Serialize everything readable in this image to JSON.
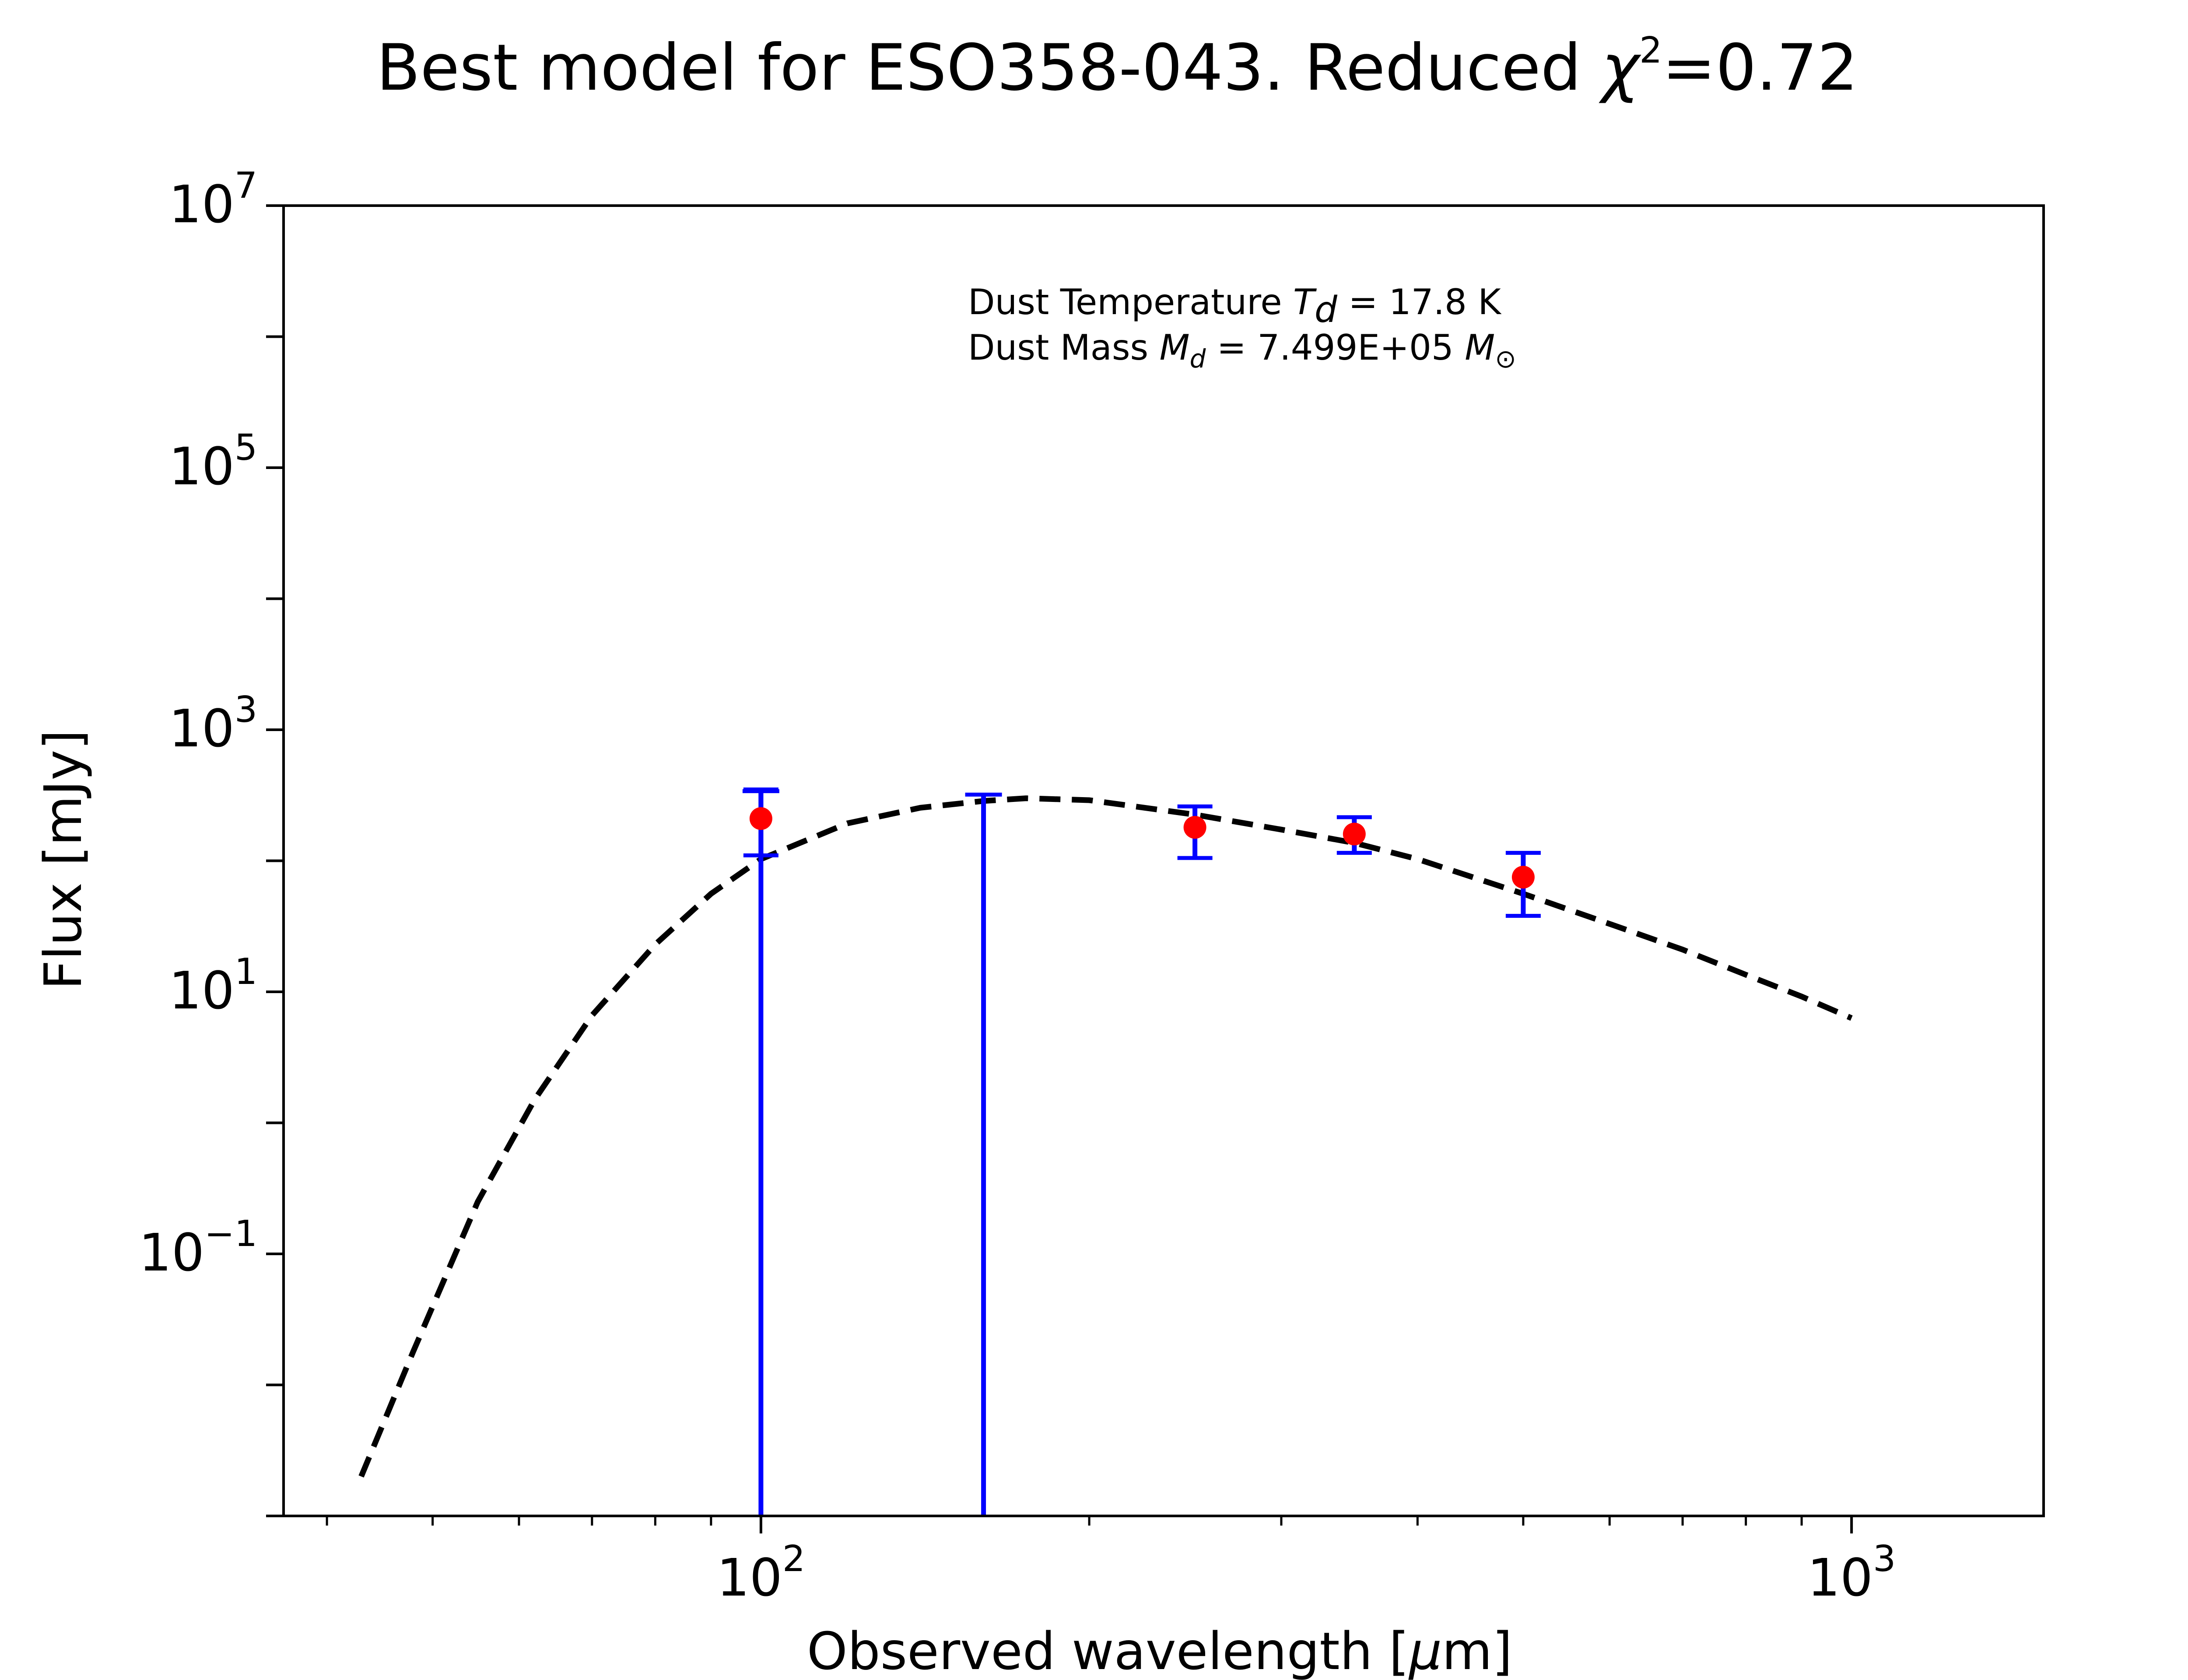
{
  "title_text": "Best model for ESO358-043. Reduced ",
  "title_chi": "χ",
  "title_chi_exp": "2",
  "title_value": "=0.72",
  "annotation": {
    "line1_prefix": "Dust Temperature ",
    "line1_sym": "T",
    "line1_sub": "d",
    "line1_suffix": " = 17.8 K",
    "line2_prefix": "Dust Mass ",
    "line2_sym": "M",
    "line2_sub": "d",
    "line2_mid": " = 7.499E+05 ",
    "line2_unit": "M",
    "line2_unit_sub": "⊙"
  },
  "chart_data": {
    "type": "scatter",
    "title": "Best model for ESO358-043. Reduced χ²=0.72",
    "xlabel_text": "Observed wavelength [",
    "xlabel_unit": "μ",
    "xlabel_tail": "m]",
    "ylabel": "Flux [mJy]",
    "xscale": "log",
    "yscale": "log",
    "xlim": [
      36.5,
      1500
    ],
    "ylim": [
      0.001,
      10000000
    ],
    "grid": false,
    "x_ticks": [
      {
        "value": 100,
        "base": "10",
        "exp": "2"
      },
      {
        "value": 1000,
        "base": "10",
        "exp": "3"
      }
    ],
    "y_ticks": [
      {
        "value": 0.1,
        "base": "10",
        "exp": "−1"
      },
      {
        "value": 10,
        "base": "10",
        "exp": "1"
      },
      {
        "value": 1000,
        "base": "10",
        "exp": "3"
      },
      {
        "value": 100000,
        "base": "10",
        "exp": "5"
      },
      {
        "value": 10000000,
        "base": "10",
        "exp": "7"
      }
    ],
    "model_curve": {
      "style": "dashed",
      "color": "#000000",
      "points": [
        [
          43,
          0.002
        ],
        [
          48,
          0.018
        ],
        [
          55,
          0.25
        ],
        [
          62,
          1.5
        ],
        [
          70,
          6.6
        ],
        [
          80,
          23
        ],
        [
          90,
          56
        ],
        [
          100,
          103
        ],
        [
          120,
          193
        ],
        [
          140,
          254
        ],
        [
          160,
          286
        ],
        [
          175,
          300
        ],
        [
          200,
          290
        ],
        [
          250,
          225
        ],
        [
          300,
          173
        ],
        [
          350,
          137
        ],
        [
          400,
          103
        ],
        [
          500,
          56
        ],
        [
          600,
          33
        ],
        [
          700,
          21
        ],
        [
          800,
          13.5
        ],
        [
          900,
          9.2
        ],
        [
          1000,
          6.3
        ]
      ]
    },
    "observations": {
      "marker_color": "#ff0000",
      "errorbar_color": "#0000ff",
      "points": [
        {
          "x": 100,
          "y": 210,
          "y_low": 110,
          "y_high": 350
        },
        {
          "x": 250,
          "y": 180,
          "y_low": 105,
          "y_high": 260
        },
        {
          "x": 350,
          "y": 160,
          "y_low": 115,
          "y_high": 215
        },
        {
          "x": 500,
          "y": 75,
          "y_low": 38,
          "y_high": 115
        }
      ]
    },
    "upper_limits": {
      "color": "#0000ff",
      "points": [
        {
          "x": 100,
          "y_low": 0.001,
          "y_high": 340
        },
        {
          "x": 160,
          "y_low": 0.001,
          "y_high": 320
        }
      ]
    }
  }
}
